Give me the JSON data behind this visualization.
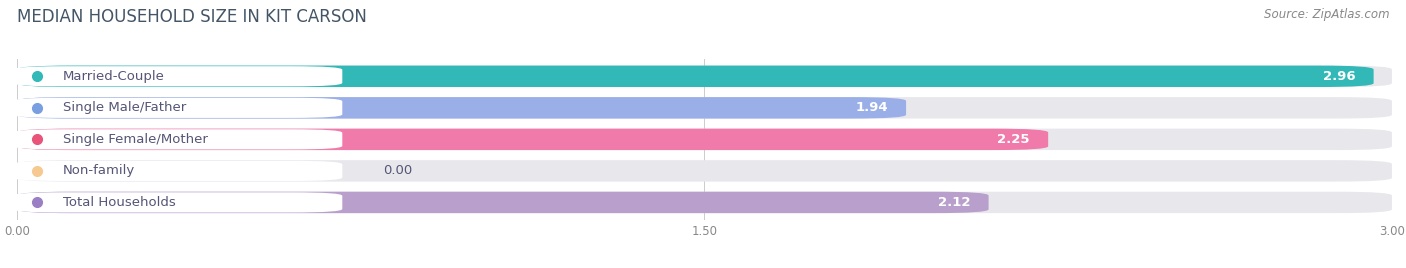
{
  "title": "MEDIAN HOUSEHOLD SIZE IN KIT CARSON",
  "source": "Source: ZipAtlas.com",
  "categories": [
    "Married-Couple",
    "Single Male/Father",
    "Single Female/Mother",
    "Non-family",
    "Total Households"
  ],
  "values": [
    2.96,
    1.94,
    2.25,
    0.0,
    2.12
  ],
  "bar_colors": [
    "#33b8b8",
    "#9aaee8",
    "#f07aaa",
    "#f5c990",
    "#b89fcc"
  ],
  "dot_colors": [
    "#33b8b8",
    "#7a9fe0",
    "#e8547a",
    "#f5c990",
    "#9b7fc4"
  ],
  "bar_bg_color": "#e8e8ec",
  "xlim": [
    0,
    3.0
  ],
  "xticks": [
    0.0,
    1.5,
    3.0
  ],
  "xtick_labels": [
    "0.00",
    "1.50",
    "3.00"
  ],
  "bar_height": 0.68,
  "label_fontsize": 9.5,
  "value_fontsize": 9.5,
  "title_fontsize": 12,
  "source_fontsize": 8.5,
  "background_color": "#ffffff",
  "text_color": "#555577",
  "pill_bg": "#ffffff"
}
